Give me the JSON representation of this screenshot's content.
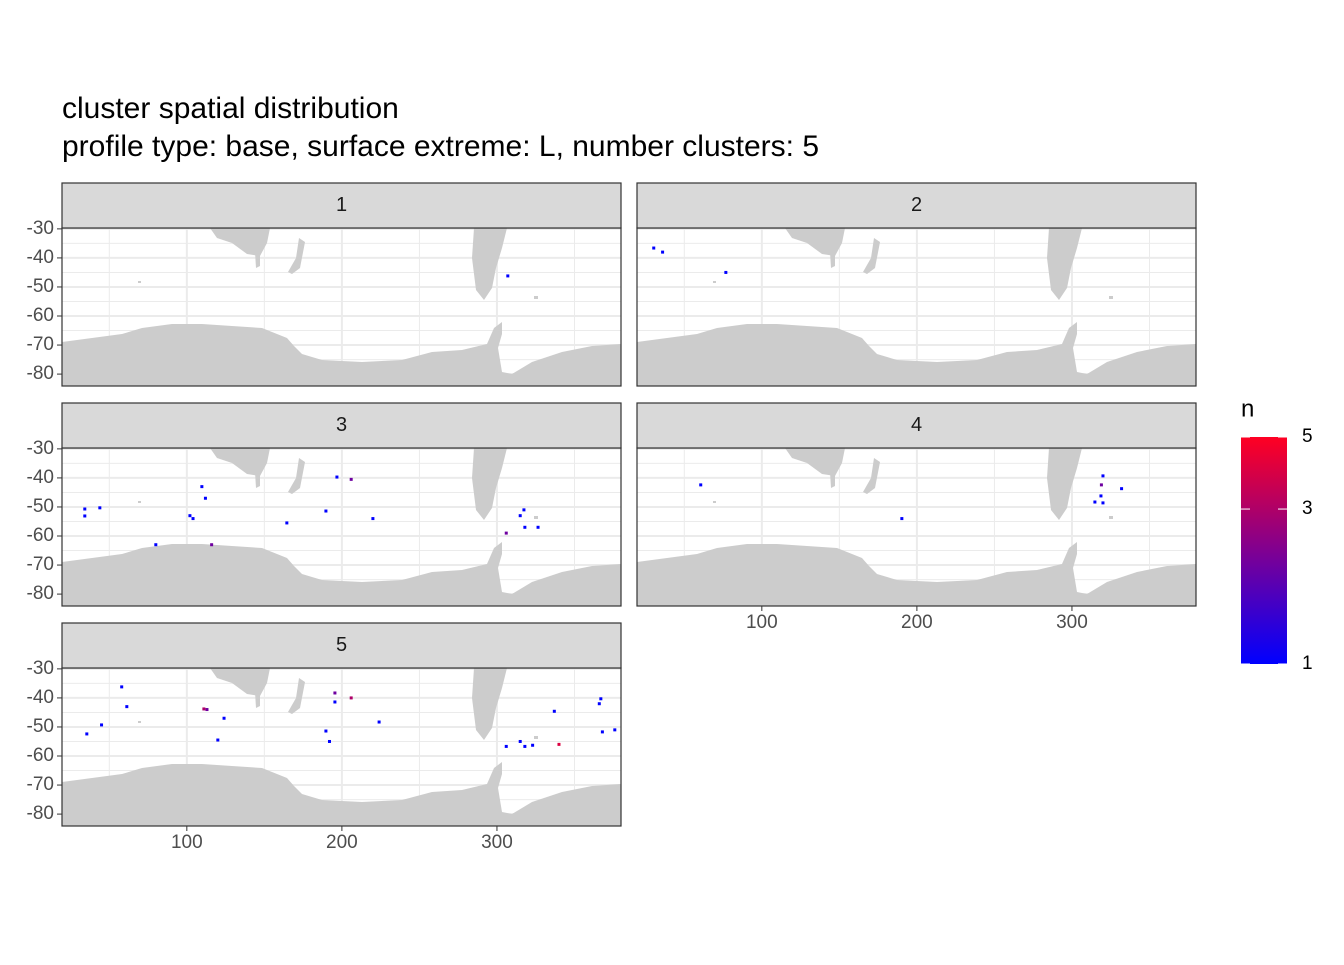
{
  "chart_data": {
    "type": "tile",
    "title": "cluster spatial distribution",
    "subtitle": "profile type: base, surface extreme: L, number clusters: 5",
    "xlim": [
      19.5,
      380
    ],
    "ylim": [
      -84.1,
      -29.7
    ],
    "xticks": [
      100,
      200,
      300
    ],
    "yticks": [
      -30,
      -40,
      -50,
      -60,
      -70,
      -80
    ],
    "grid": true,
    "legend_title": "n",
    "legend_lim": [
      1,
      5
    ],
    "legend_ticks": [
      1,
      3,
      5
    ],
    "legend_log": true,
    "low_color": "#0000ff",
    "high_color": "#ff0022",
    "facets": [
      {
        "label": "1",
        "x": [
          307
        ],
        "y": [
          -46.2
        ],
        "n": [
          1
        ]
      },
      {
        "label": "2",
        "x": [
          30.3,
          36,
          76.8
        ],
        "y": [
          -36.6,
          -38,
          -45
        ],
        "n": [
          1,
          1,
          1
        ]
      },
      {
        "label": "3",
        "x": [
          34.2,
          34.2,
          43.9,
          109.7,
          112,
          102,
          104,
          116,
          80,
          164.5,
          189.7,
          196.8,
          206,
          220,
          317.4,
          315,
          318,
          306,
          326.5
        ],
        "y": [
          -50.7,
          -53.1,
          -50.3,
          -43,
          -47,
          -53,
          -54,
          -63,
          -63,
          -55.5,
          -51.4,
          -39.7,
          -40.5,
          -54,
          -51,
          -53,
          -57,
          -59,
          -57
        ],
        "n": [
          1,
          1,
          1,
          1,
          1,
          1,
          1,
          2,
          1,
          1,
          1,
          1,
          2,
          1,
          1,
          1,
          1,
          2,
          1
        ]
      },
      {
        "label": "4",
        "x": [
          60.6,
          190.3,
          314.8,
          318.7,
          319,
          320,
          320,
          332
        ],
        "y": [
          -42.4,
          -54,
          -48.3,
          -46.2,
          -42.4,
          -39.3,
          -48.6,
          -43.7
        ],
        "n": [
          1,
          1,
          1,
          1,
          2,
          1,
          1,
          1
        ]
      },
      {
        "label": "5",
        "x": [
          35.5,
          45,
          58,
          61.3,
          111,
          113,
          124,
          120,
          189.7,
          192,
          195.5,
          195.5,
          206,
          224,
          306,
          315,
          318,
          323,
          337,
          340,
          367,
          366,
          368,
          376
        ],
        "y": [
          -52.4,
          -49.3,
          -36.2,
          -43,
          -43.8,
          -44,
          -47,
          -54.5,
          -51.4,
          -55,
          -41.4,
          -38.3,
          -40,
          -48.3,
          -56.7,
          -55,
          -56.7,
          -56.3,
          -44.6,
          -56,
          -40.3,
          -42,
          -51.7,
          -51
        ],
        "n": [
          1,
          1,
          1,
          1,
          3,
          2,
          1,
          1,
          1,
          1,
          1,
          2,
          3,
          1,
          1,
          1,
          1,
          1,
          1,
          4,
          1,
          1,
          1,
          1
        ]
      }
    ]
  }
}
